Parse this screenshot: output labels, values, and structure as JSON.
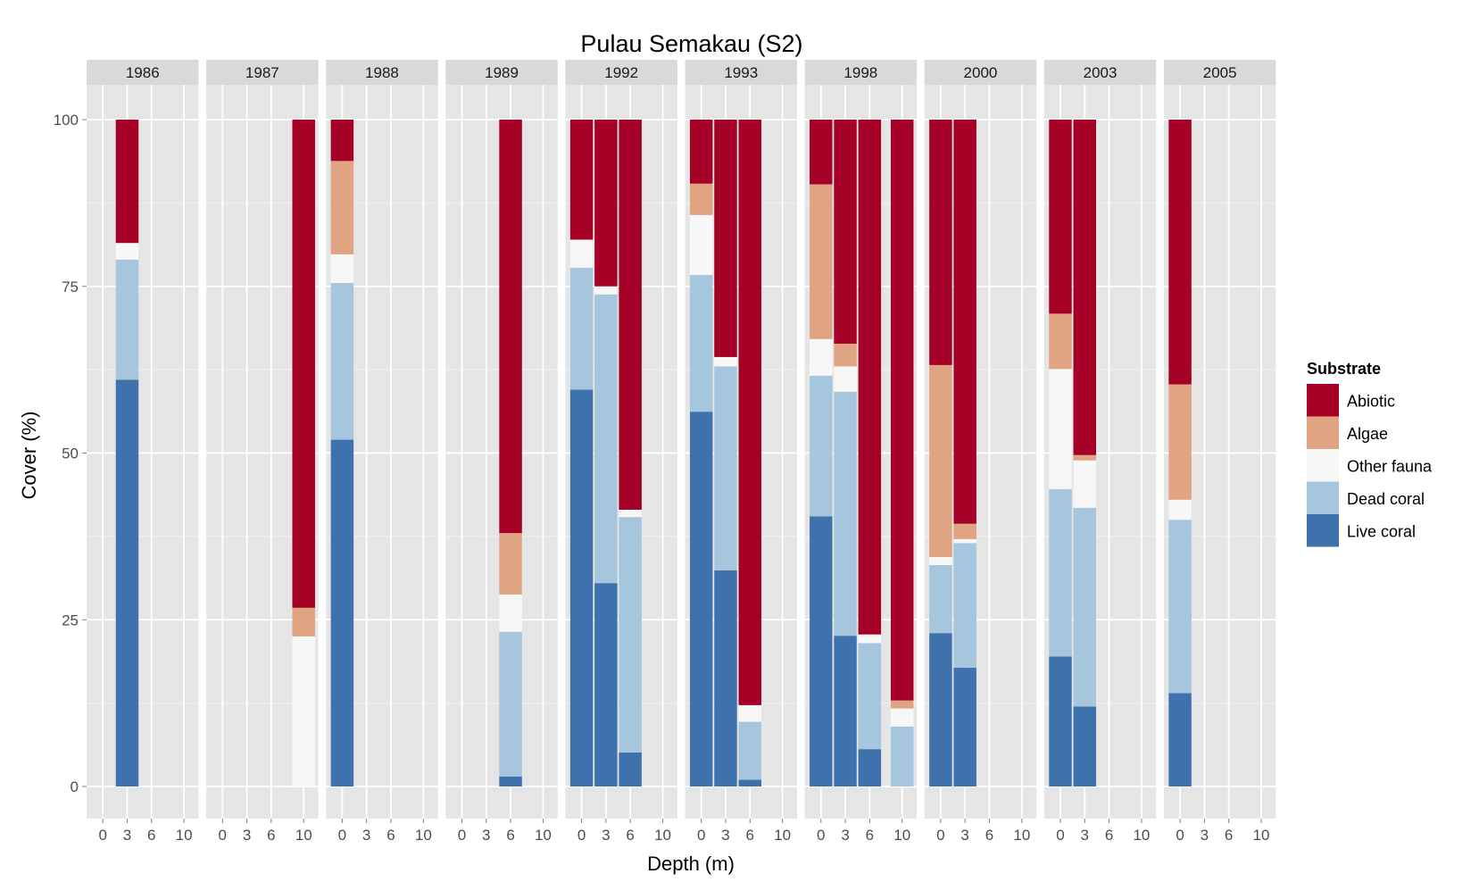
{
  "chart_data": {
    "type": "bar",
    "stacked": true,
    "faceted": true,
    "title": "Pulau Semakau (S2)",
    "xlabel": "Depth (m)",
    "ylabel": "Cover (%)",
    "ylim": [
      0,
      100
    ],
    "xlim": [
      -2,
      11.8
    ],
    "x_ticks": [
      0,
      3,
      6,
      10
    ],
    "x_tick_labels": [
      "0",
      "3",
      "6",
      "10"
    ],
    "y_ticks": [
      0,
      25,
      50,
      75,
      100
    ],
    "y_tick_labels": [
      "0",
      "25",
      "50",
      "75",
      "100"
    ],
    "grid": true,
    "legend": {
      "title": "Substrate",
      "placement": "right",
      "items": [
        "Abiotic",
        "Algae",
        "Other fauna",
        "Dead coral",
        "Live coral"
      ]
    },
    "stack_order_bottom_to_top": [
      "Live coral",
      "Dead coral",
      "Other fauna",
      "Algae",
      "Abiotic"
    ],
    "colors": {
      "Abiotic": "#a50026",
      "Algae": "#e0a483",
      "Other fauna": "#f7f7f7",
      "Dead coral": "#a6c6de",
      "Live coral": "#3f71ad"
    },
    "facets": [
      {
        "label": "1986",
        "bars": [
          {
            "depth": 3,
            "Live coral": 61,
            "Dead coral": 18,
            "Other fauna": 2.5,
            "Algae": 0,
            "Abiotic": 18.5
          }
        ]
      },
      {
        "label": "1987",
        "bars": [
          {
            "depth": 10,
            "Live coral": 0,
            "Dead coral": 0,
            "Other fauna": 22.5,
            "Algae": 4.3,
            "Abiotic": 73.2
          }
        ]
      },
      {
        "label": "1988",
        "bars": [
          {
            "depth": 0,
            "Live coral": 52,
            "Dead coral": 23.5,
            "Other fauna": 4.3,
            "Algae": 14,
            "Abiotic": 6.2
          }
        ]
      },
      {
        "label": "1989",
        "bars": [
          {
            "depth": 6,
            "Live coral": 1.5,
            "Dead coral": 21.7,
            "Other fauna": 5.6,
            "Algae": 9.2,
            "Abiotic": 62
          }
        ]
      },
      {
        "label": "1992",
        "bars": [
          {
            "depth": 0,
            "Live coral": 59.5,
            "Dead coral": 18.3,
            "Other fauna": 4.2,
            "Algae": 0,
            "Abiotic": 18
          },
          {
            "depth": 3,
            "Live coral": 30.5,
            "Dead coral": 43.3,
            "Other fauna": 1.2,
            "Algae": 0,
            "Abiotic": 25
          },
          {
            "depth": 6,
            "Live coral": 5.1,
            "Dead coral": 35.3,
            "Other fauna": 1.1,
            "Algae": 0,
            "Abiotic": 58.5
          }
        ]
      },
      {
        "label": "1993",
        "bars": [
          {
            "depth": 0,
            "Live coral": 56.2,
            "Dead coral": 20.5,
            "Other fauna": 9,
            "Algae": 4.7,
            "Abiotic": 9.6
          },
          {
            "depth": 3,
            "Live coral": 32.4,
            "Dead coral": 30.6,
            "Other fauna": 1.4,
            "Algae": 0,
            "Abiotic": 35.6
          },
          {
            "depth": 6,
            "Live coral": 1,
            "Dead coral": 8.7,
            "Other fauna": 2.5,
            "Algae": 0,
            "Abiotic": 87.8
          }
        ]
      },
      {
        "label": "1998",
        "bars": [
          {
            "depth": 0,
            "Live coral": 40.5,
            "Dead coral": 21.1,
            "Other fauna": 5.5,
            "Algae": 23.2,
            "Abiotic": 9.7
          },
          {
            "depth": 3,
            "Live coral": 22.6,
            "Dead coral": 36.6,
            "Other fauna": 3.8,
            "Algae": 3.4,
            "Abiotic": 33.6
          },
          {
            "depth": 6,
            "Live coral": 5.6,
            "Dead coral": 15.9,
            "Other fauna": 1.3,
            "Algae": 0,
            "Abiotic": 77.2
          },
          {
            "depth": 10,
            "Live coral": 0,
            "Dead coral": 9,
            "Other fauna": 2.7,
            "Algae": 1.2,
            "Abiotic": 87.1
          }
        ]
      },
      {
        "label": "2000",
        "bars": [
          {
            "depth": 0,
            "Live coral": 23,
            "Dead coral": 10.2,
            "Other fauna": 1.2,
            "Algae": 28.8,
            "Abiotic": 36.8
          },
          {
            "depth": 3,
            "Live coral": 17.8,
            "Dead coral": 18.7,
            "Other fauna": 0.6,
            "Algae": 2.3,
            "Abiotic": 60.6
          }
        ]
      },
      {
        "label": "2003",
        "bars": [
          {
            "depth": 0,
            "Live coral": 19.5,
            "Dead coral": 25.1,
            "Other fauna": 18,
            "Algae": 8.3,
            "Abiotic": 29.1
          },
          {
            "depth": 3,
            "Live coral": 12,
            "Dead coral": 29.8,
            "Other fauna": 7.1,
            "Algae": 0.8,
            "Abiotic": 50.3
          }
        ]
      },
      {
        "label": "2005",
        "bars": [
          {
            "depth": 0,
            "Live coral": 14,
            "Dead coral": 26,
            "Other fauna": 3,
            "Algae": 17.3,
            "Abiotic": 39.7
          }
        ]
      }
    ]
  }
}
